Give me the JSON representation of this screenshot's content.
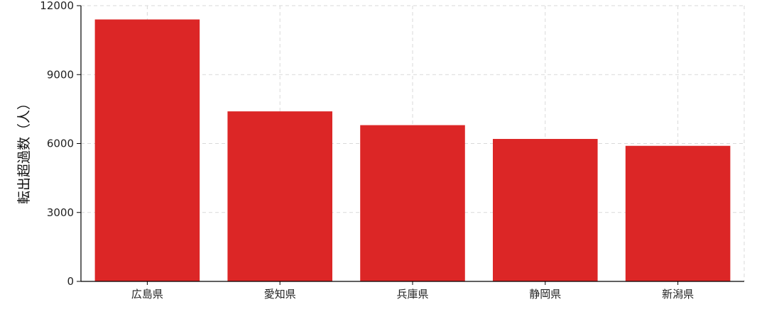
{
  "chart_data": {
    "type": "bar",
    "title": "",
    "xlabel": "",
    "ylabel": "転出超過数（人）",
    "categories": [
      "広島県",
      "愛知県",
      "兵庫県",
      "静岡県",
      "新潟県"
    ],
    "values": [
      11400,
      7400,
      6800,
      6200,
      5900
    ],
    "ylim": [
      0,
      12000
    ],
    "yticks": [
      0,
      3000,
      6000,
      9000,
      12000
    ],
    "ytick_labels": [
      "0",
      "3000",
      "6000",
      "9000",
      "12000"
    ],
    "grid": true,
    "bar_color": "#dc2626"
  }
}
